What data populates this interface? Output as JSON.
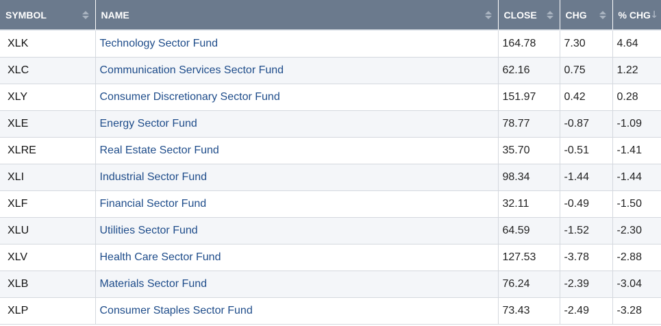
{
  "table": {
    "headers": {
      "symbol": "SYMBOL",
      "name": "NAME",
      "close": "CLOSE",
      "chg": "CHG",
      "pct_chg": "% CHG"
    },
    "sort": {
      "column": "pct_chg",
      "direction": "descending"
    },
    "rows": [
      {
        "symbol": "XLK",
        "name": "Technology Sector Fund",
        "close": "164.78",
        "chg": "7.30",
        "pct_chg": "4.64"
      },
      {
        "symbol": "XLC",
        "name": "Communication Services Sector Fund",
        "close": "62.16",
        "chg": "0.75",
        "pct_chg": "1.22"
      },
      {
        "symbol": "XLY",
        "name": "Consumer Discretionary Sector Fund",
        "close": "151.97",
        "chg": "0.42",
        "pct_chg": "0.28"
      },
      {
        "symbol": "XLE",
        "name": "Energy Sector Fund",
        "close": "78.77",
        "chg": "-0.87",
        "pct_chg": "-1.09"
      },
      {
        "symbol": "XLRE",
        "name": "Real Estate Sector Fund",
        "close": "35.70",
        "chg": "-0.51",
        "pct_chg": "-1.41"
      },
      {
        "symbol": "XLI",
        "name": "Industrial Sector Fund",
        "close": "98.34",
        "chg": "-1.44",
        "pct_chg": "-1.44"
      },
      {
        "symbol": "XLF",
        "name": "Financial Sector Fund",
        "close": "32.11",
        "chg": "-0.49",
        "pct_chg": "-1.50"
      },
      {
        "symbol": "XLU",
        "name": "Utilities Sector Fund",
        "close": "64.59",
        "chg": "-1.52",
        "pct_chg": "-2.30"
      },
      {
        "symbol": "XLV",
        "name": "Health Care Sector Fund",
        "close": "127.53",
        "chg": "-3.78",
        "pct_chg": "-2.88"
      },
      {
        "symbol": "XLB",
        "name": "Materials Sector Fund",
        "close": "76.24",
        "chg": "-2.39",
        "pct_chg": "-3.04"
      },
      {
        "symbol": "XLP",
        "name": "Consumer Staples Sector Fund",
        "close": "73.43",
        "chg": "-2.49",
        "pct_chg": "-3.28"
      }
    ]
  },
  "colors": {
    "header_bg": "#6b7a8d",
    "header_text": "#ffffff",
    "link": "#1e4c8a",
    "alt_row": "#f4f6f9"
  },
  "icons": {
    "sortable": "sort-both-icon",
    "sorted_desc": "sort-desc-icon"
  }
}
